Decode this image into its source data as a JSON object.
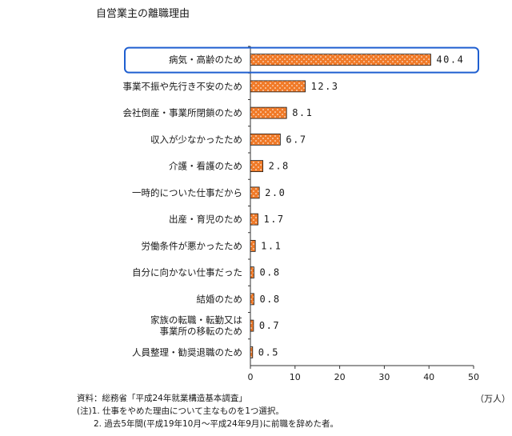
{
  "chart_data": {
    "type": "bar",
    "orientation": "horizontal",
    "title": "自営業主の離職理由",
    "unit_label": "（万人）",
    "categories": [
      [
        "病気・高齢のため"
      ],
      [
        "事業不振や先行き不安のため"
      ],
      [
        "会社倒産・事業所閉鎖のため"
      ],
      [
        "収入が少なかったため"
      ],
      [
        "介護・看護のため"
      ],
      [
        "一時的についた仕事だから"
      ],
      [
        "出産・育児のため"
      ],
      [
        "労働条件が悪かったため"
      ],
      [
        "自分に向かない仕事だった"
      ],
      [
        "結婚のため"
      ],
      [
        "家族の転職・転勤又は",
        "事業所の移転のため"
      ],
      [
        "人員整理・勧奨退職のため"
      ]
    ],
    "values": [
      40.4,
      12.3,
      8.1,
      6.7,
      2.8,
      2.0,
      1.7,
      1.1,
      0.8,
      0.8,
      0.7,
      0.5
    ],
    "value_labels": [
      "40.4",
      "12.3",
      "8.1",
      "6.7",
      "2.8",
      "2.0",
      "1.7",
      "1.1",
      "0.8",
      "0.8",
      "0.7",
      "0.5"
    ],
    "xlim": [
      0,
      50
    ],
    "xticks": [
      0,
      10,
      20,
      30,
      40,
      50
    ],
    "highlighted_index": 0,
    "bar_color": "#f07a28",
    "dot_color": "#ffffff",
    "highlight_color": "#1f5fd0"
  },
  "notes": [
    "資料：総務省「平成24年就業構造基本調査」",
    "(注)1. 仕事をやめた理由について主なものを1つ選択。",
    "　　2. 過去5年間(平成19年10月～平成24年9月)に前職を辞めた者。"
  ]
}
